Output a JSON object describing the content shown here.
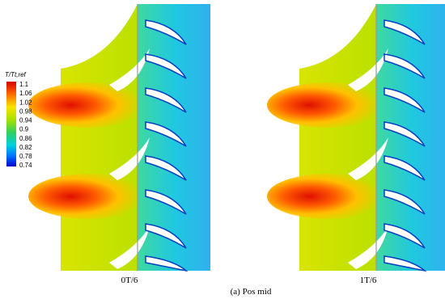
{
  "colorbar": {
    "title": "T/Tt,ref",
    "ticks": [
      "1.1",
      "1.06",
      "1.02",
      "0.98",
      "0.94",
      "0.9",
      "0.86",
      "0.82",
      "0.78",
      "0.74"
    ]
  },
  "panels": [
    {
      "label": "0T/6"
    },
    {
      "label": "1T/6"
    }
  ],
  "caption": "(a) Pos mid"
}
